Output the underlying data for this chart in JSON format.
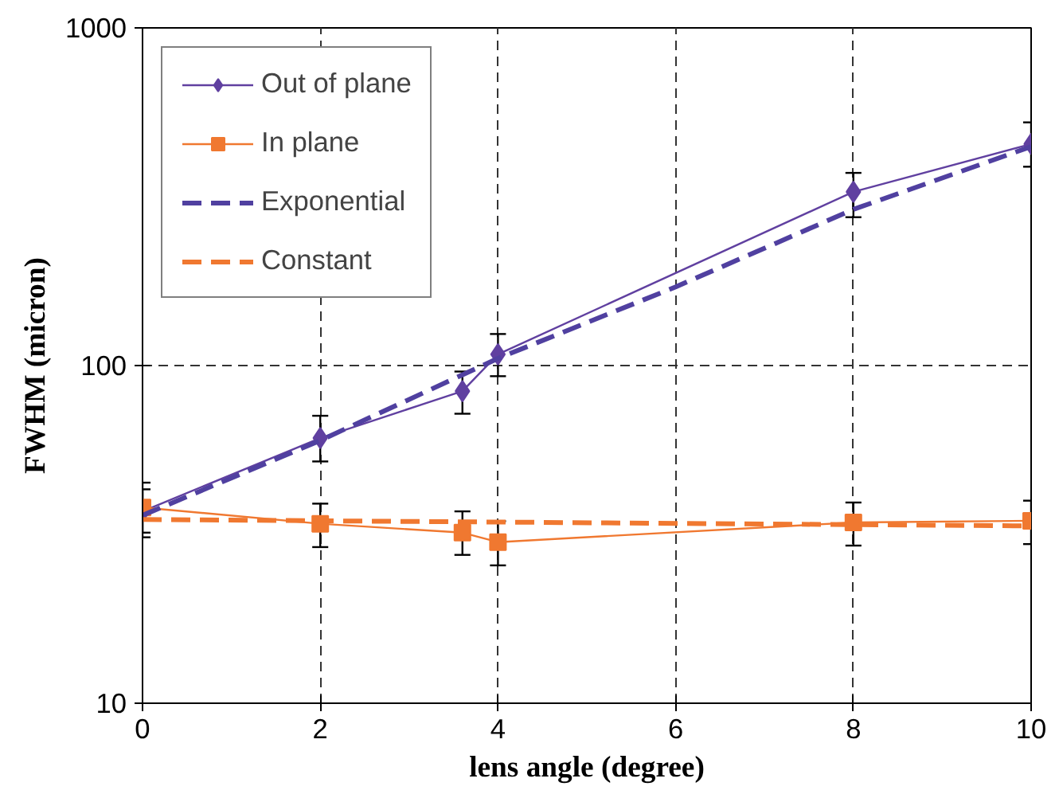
{
  "chart_data": {
    "type": "line",
    "xlabel": "lens angle (degree)",
    "ylabel": "FWHM (micron)",
    "log": "y",
    "xlim": [
      0,
      10
    ],
    "xticks": [
      0,
      2,
      4,
      6,
      8,
      10
    ],
    "ylim": [
      10,
      1000
    ],
    "yticks": [
      10,
      100,
      1000
    ],
    "grid": true,
    "legend": "top left",
    "series": [
      {
        "name": "Out of plane",
        "color": "#6040a0",
        "marker": "diamond",
        "line_style": "solid",
        "x": [
          0,
          2,
          3.6,
          4,
          8,
          10
        ],
        "values": [
          37,
          61,
          84,
          108,
          327,
          453
        ],
        "errors": [
          [
            32,
            43
          ],
          [
            52,
            71
          ],
          [
            72,
            96
          ],
          [
            93,
            124
          ],
          [
            275,
            372
          ],
          [
            388,
            525
          ]
        ]
      },
      {
        "name": "In plane",
        "color": "#f07830",
        "marker": "square",
        "line_style": "solid",
        "x": [
          0,
          2,
          3.6,
          4,
          8,
          10
        ],
        "values": [
          38,
          34,
          32,
          30,
          34.3,
          34.7
        ],
        "errors": [
          [
            31,
            45
          ],
          [
            29,
            39
          ],
          [
            27.5,
            37
          ],
          [
            25.6,
            34.6
          ],
          [
            29.3,
            39.3
          ],
          [
            29.6,
            39.8
          ]
        ]
      },
      {
        "name": "Exponential",
        "color": "#5040a0",
        "marker": "none",
        "line_style": "dashed",
        "x": [
          0,
          2,
          4,
          6,
          8,
          10
        ],
        "values": [
          36,
          60,
          105,
          171,
          290,
          445
        ]
      },
      {
        "name": "Constant",
        "color": "#f07830",
        "marker": "none",
        "line_style": "dashed",
        "x": [
          0,
          10
        ],
        "values": [
          35,
          33.5
        ]
      }
    ]
  }
}
